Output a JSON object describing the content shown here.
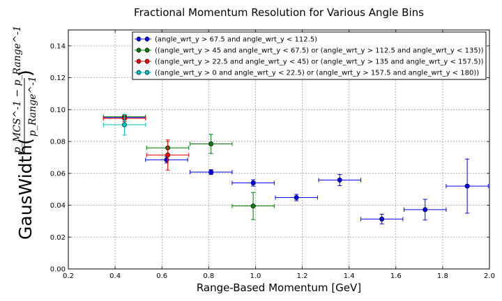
{
  "chart_data": {
    "type": "scatter",
    "title": "Fractional Momentum Resolution for Various Angle Bins",
    "xlabel": "Range-Based Momentum [GeV]",
    "ylabel": {
      "prefix": "GausWidth(",
      "numerator": "p_MCS^-1 − p_Range^-1",
      "denominator": "p_Range^-1",
      "suffix": ")"
    },
    "xlim": [
      0.2,
      2.0
    ],
    "ylim": [
      0.0,
      0.15
    ],
    "xticks": [
      "0.2",
      "0.4",
      "0.6",
      "0.8",
      "1.0",
      "1.2",
      "1.4",
      "1.6",
      "1.8",
      "2.0"
    ],
    "yticks": [
      "0.00",
      "0.02",
      "0.04",
      "0.06",
      "0.08",
      "0.10",
      "0.12",
      "0.14"
    ],
    "grid": true,
    "legend_position": "top-right",
    "series": [
      {
        "name": "(angle_wrt_y > 67.5 and angle_wrt_y < 112.5)",
        "color": "#0000ff",
        "points": [
          {
            "x": 0.44,
            "xerr": 0.09,
            "y": 0.095,
            "yerr": 0.001
          },
          {
            "x": 0.62,
            "xerr": 0.09,
            "y": 0.0685,
            "yerr": 0.002
          },
          {
            "x": 0.81,
            "xerr": 0.09,
            "y": 0.0608,
            "yerr": 0.0015
          },
          {
            "x": 0.99,
            "xerr": 0.09,
            "y": 0.054,
            "yerr": 0.002
          },
          {
            "x": 1.175,
            "xerr": 0.09,
            "y": 0.0448,
            "yerr": 0.002
          },
          {
            "x": 1.36,
            "xerr": 0.09,
            "y": 0.0558,
            "yerr": 0.0035
          },
          {
            "x": 1.54,
            "xerr": 0.09,
            "y": 0.0313,
            "yerr": 0.003
          },
          {
            "x": 1.725,
            "xerr": 0.09,
            "y": 0.0372,
            "yerr": 0.0065
          },
          {
            "x": 1.905,
            "xerr": 0.09,
            "y": 0.052,
            "yerr": 0.017
          }
        ]
      },
      {
        "name": "((angle_wrt_y > 45 and angle_wrt_y < 67.5) or (angle_wrt_y > 112.5 and angle_wrt_y < 135))",
        "color": "#007f00",
        "points": [
          {
            "x": 0.44,
            "xerr": 0.09,
            "y": 0.0955,
            "yerr": 0.0015
          },
          {
            "x": 0.625,
            "xerr": 0.09,
            "y": 0.076,
            "yerr": 0.004
          },
          {
            "x": 0.81,
            "xerr": 0.09,
            "y": 0.0785,
            "yerr": 0.006
          },
          {
            "x": 0.99,
            "xerr": 0.09,
            "y": 0.0395,
            "yerr": 0.0085
          }
        ]
      },
      {
        "name": "((angle_wrt_y > 22.5 and angle_wrt_y < 45) or (angle_wrt_y > 135 and angle_wrt_y < 157.5))",
        "color": "#ff0000",
        "points": [
          {
            "x": 0.44,
            "xerr": 0.09,
            "y": 0.0945,
            "yerr": 0.002
          },
          {
            "x": 0.625,
            "xerr": 0.09,
            "y": 0.0715,
            "yerr": 0.0095
          }
        ]
      },
      {
        "name": "((angle_wrt_y > 0 and angle_wrt_y < 22.5) or (angle_wrt_y > 157.5 and angle_wrt_y < 180))",
        "color": "#00bfbf",
        "points": [
          {
            "x": 0.44,
            "xerr": 0.09,
            "y": 0.0905,
            "yerr": 0.0065
          }
        ]
      }
    ]
  }
}
